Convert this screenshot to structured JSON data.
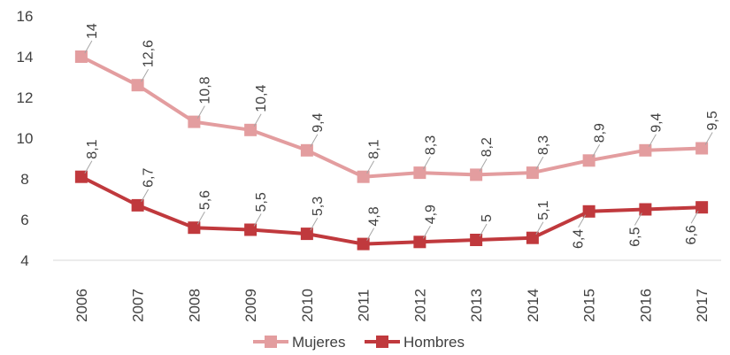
{
  "chart_data": {
    "type": "line",
    "categories": [
      "2006",
      "2007",
      "2008",
      "2009",
      "2010",
      "2011",
      "2012",
      "2013",
      "2014",
      "2015",
      "2016",
      "2017"
    ],
    "series": [
      {
        "name": "Mujeres",
        "values": [
          14,
          12.6,
          10.8,
          10.4,
          9.4,
          8.1,
          8.3,
          8.2,
          8.3,
          8.9,
          9.4,
          9.5
        ],
        "labels": [
          "14",
          "12,6",
          "10,8",
          "10,4",
          "9,4",
          "8,1",
          "8,3",
          "8,2",
          "8,3",
          "8,9",
          "9,4",
          "9,5"
        ],
        "color": "#e39d9f",
        "label_position": "above"
      },
      {
        "name": "Hombres",
        "values": [
          8.1,
          6.7,
          5.6,
          5.5,
          5.3,
          4.8,
          4.9,
          5,
          5.1,
          6.4,
          6.5,
          6.6
        ],
        "labels": [
          "8,1",
          "6,7",
          "5,6",
          "5,5",
          "5,3",
          "4,8",
          "4,9",
          "5",
          "5,1",
          "6,4",
          "6,5",
          "6,6"
        ],
        "color": "#c0393d",
        "label_position": "mixed"
      }
    ],
    "y_ticks": [
      "4",
      "6",
      "8",
      "10",
      "12",
      "14",
      "16"
    ],
    "ylim": [
      4,
      16
    ],
    "grid": false,
    "legend_position": "bottom",
    "title": "",
    "xlabel": "",
    "ylabel": ""
  }
}
